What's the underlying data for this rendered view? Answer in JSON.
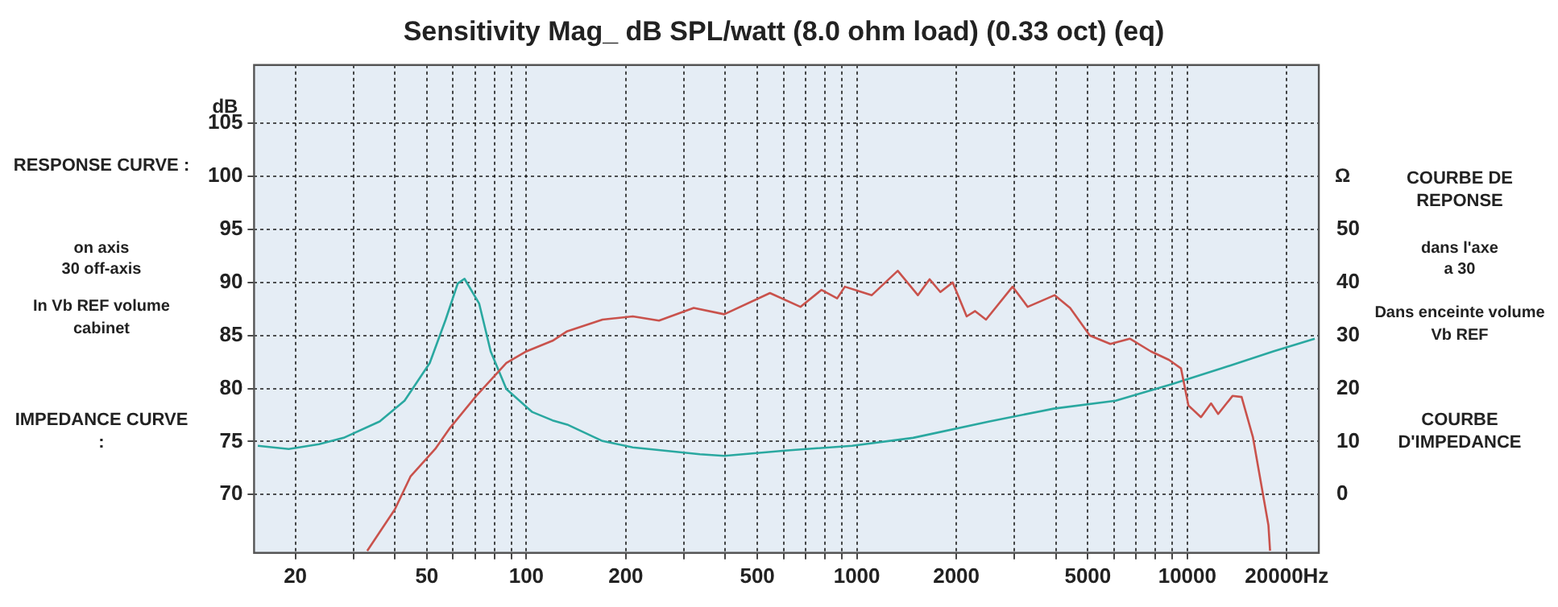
{
  "chart_data": {
    "type": "line",
    "title": "Sensitivity Mag_ dB SPL/watt (8.0 ohm load) (0.33 oct) (eq)",
    "ylabel": "dB",
    "y2label": "Ω",
    "log": "x",
    "grid": true,
    "marker": "none",
    "xlim": [
      15,
      25000
    ],
    "xticks": [
      {
        "value": 20,
        "label": "20"
      },
      {
        "value": 30,
        "label": null
      },
      {
        "value": 40,
        "label": null
      },
      {
        "value": 50,
        "label": "50"
      },
      {
        "value": 60,
        "label": null
      },
      {
        "value": 70,
        "label": null
      },
      {
        "value": 80,
        "label": null
      },
      {
        "value": 90,
        "label": null
      },
      {
        "value": 100,
        "label": "100"
      },
      {
        "value": 200,
        "label": "200"
      },
      {
        "value": 300,
        "label": null
      },
      {
        "value": 400,
        "label": null
      },
      {
        "value": 500,
        "label": "500"
      },
      {
        "value": 600,
        "label": null
      },
      {
        "value": 700,
        "label": null
      },
      {
        "value": 800,
        "label": null
      },
      {
        "value": 900,
        "label": null
      },
      {
        "value": 1000,
        "label": "1000"
      },
      {
        "value": 2000,
        "label": "2000"
      },
      {
        "value": 3000,
        "label": null
      },
      {
        "value": 4000,
        "label": null
      },
      {
        "value": 5000,
        "label": "5000"
      },
      {
        "value": 6000,
        "label": null
      },
      {
        "value": 7000,
        "label": null
      },
      {
        "value": 8000,
        "label": null
      },
      {
        "value": 9000,
        "label": null
      },
      {
        "value": 10000,
        "label": "10000"
      },
      {
        "value": 20000,
        "label": "20000Hz"
      }
    ],
    "ylim": [
      64.5,
      110.5
    ],
    "yticks": [
      70,
      75,
      80,
      85,
      90,
      95,
      100,
      105
    ],
    "y2lim": [
      -11,
      81
    ],
    "y2ticks": [
      0,
      10,
      20,
      30,
      40,
      50
    ],
    "series": [
      {
        "color": "#c9524c",
        "x": [
          33,
          40,
          44.6,
          53,
          58.8,
          70.5,
          87,
          100,
          120,
          133,
          170,
          210,
          252,
          321,
          397,
          546,
          675,
          782,
          872,
          920,
          1034,
          1110,
          1330,
          1530,
          1660,
          1790,
          1950,
          2150,
          2280,
          2460,
          2960,
          3290,
          3970,
          4420,
          5070,
          5850,
          6700,
          7760,
          8800,
          9570,
          10080,
          11000,
          11800,
          12400,
          13700,
          14600,
          15800,
          17600,
          17800
        ],
        "values": [
          64.7,
          68.6,
          71.7,
          74.3,
          76.3,
          79.3,
          82.4,
          83.5,
          84.5,
          85.4,
          86.5,
          86.8,
          86.4,
          87.6,
          87,
          89,
          87.7,
          89.3,
          88.5,
          89.6,
          89.1,
          88.8,
          91.1,
          88.8,
          90.3,
          89.1,
          90,
          86.8,
          87.3,
          86.5,
          89.6,
          87.7,
          88.8,
          87.6,
          85,
          84.2,
          84.7,
          83.5,
          82.7,
          81.9,
          78.4,
          77.3,
          78.6,
          77.6,
          79.3,
          79.2,
          75.4,
          67.1,
          64.7
        ]
      },
      {
        "color": "#2aa8a0",
        "axis": "y2",
        "x": [
          15.4,
          19.1,
          23.6,
          28,
          36,
          42.8,
          51,
          57,
          62,
          65,
          72,
          78,
          87,
          104,
          120,
          133,
          170,
          210,
          335,
          397,
          606,
          968,
          1480,
          2520,
          3940,
          6070,
          8970,
          12700,
          18200,
          24300
        ],
        "values": [
          9.2,
          8.6,
          9.5,
          10.7,
          13.8,
          17.7,
          24.8,
          33,
          39.8,
          40.7,
          36,
          27,
          19.9,
          15.6,
          14,
          13.2,
          10.1,
          8.9,
          7.6,
          7.3,
          8.3,
          9.2,
          10.7,
          13.8,
          16.2,
          17.7,
          20.8,
          23.8,
          27,
          29.4
        ]
      }
    ],
    "annotations": [
      "RESPONSE CURVE :",
      "on axis",
      "30  off-axis",
      "In Vb REF volume cabinet",
      "IMPEDANCE CURVE :",
      "COURBE DE REPONSE",
      "dans l'axe",
      "a 30",
      "Dans enceinte volume  Vb REF",
      "COURBE D'IMPEDANCE"
    ]
  }
}
